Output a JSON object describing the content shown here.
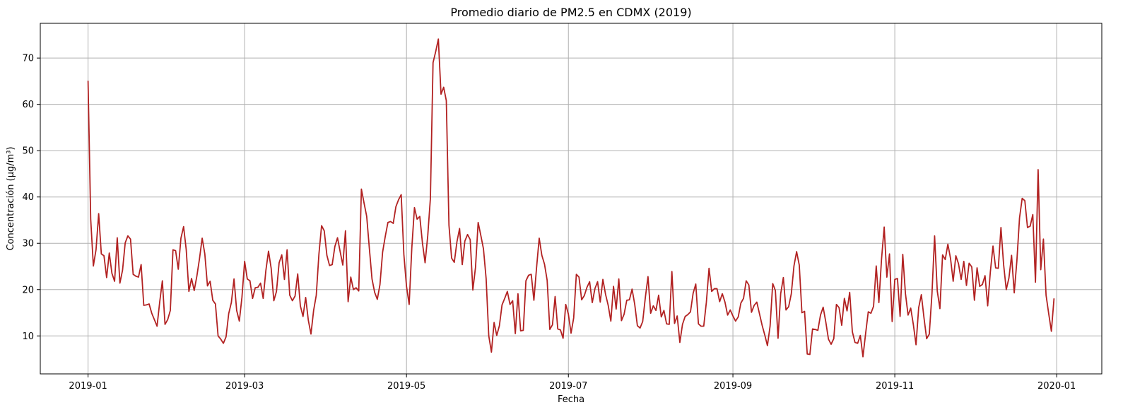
{
  "chart_data": {
    "type": "line",
    "title": "Promedio diario de PM2.5 en CDMX (2019)",
    "xlabel": "Fecha",
    "ylabel": "Concentración (µg/m³)",
    "xlim": [
      "2018-12-14",
      "2020-01-18"
    ],
    "ylim": [
      1.8,
      77.5
    ],
    "x_ticks": [
      "2019-01",
      "2019-03",
      "2019-05",
      "2019-07",
      "2019-09",
      "2019-11",
      "2020-01"
    ],
    "y_ticks": [
      10,
      20,
      30,
      40,
      50,
      60,
      70
    ],
    "grid": true,
    "legend": "none",
    "series": [
      {
        "color": "#b22222",
        "x_start": "2019-01-01",
        "x_step_days": 1,
        "values": [
          65.1,
          35.2,
          25.1,
          28.6,
          36.4,
          27.7,
          27.3,
          22.6,
          27.9,
          23.5,
          21.8,
          31.2,
          21.4,
          24.2,
          30.1,
          31.6,
          30.9,
          23.3,
          22.9,
          22.7,
          25.4,
          16.6,
          16.7,
          16.9,
          14.9,
          13.5,
          12.1,
          17.3,
          21.9,
          12.5,
          13.5,
          15.5,
          28.6,
          28.4,
          24.4,
          31.1,
          33.6,
          28.6,
          19.6,
          22.4,
          19.8,
          22.9,
          26.7,
          31.1,
          27.7,
          20.8,
          21.8,
          17.7,
          16.9,
          10.0,
          9.3,
          8.4,
          9.8,
          14.8,
          17.2,
          22.3,
          15.5,
          13.2,
          18.4,
          26.1,
          22.3,
          21.9,
          18.1,
          20.4,
          20.5,
          21.4,
          18.1,
          24.1,
          28.3,
          24.6,
          17.6,
          19.6,
          25.8,
          27.5,
          22.2,
          28.6,
          18.8,
          17.6,
          18.6,
          23.4,
          16.5,
          14.2,
          18.3,
          13.4,
          10.4,
          15.5,
          18.8,
          27.7,
          33.8,
          32.7,
          27.4,
          25.2,
          25.4,
          29.3,
          31.2,
          28.2,
          25.3,
          32.7,
          17.4,
          22.7,
          20.0,
          20.4,
          19.7,
          41.7,
          38.7,
          35.8,
          28.9,
          22.3,
          19.4,
          17.9,
          21.1,
          28.1,
          31.5,
          34.5,
          34.7,
          34.3,
          37.9,
          39.4,
          40.5,
          27.6,
          20.7,
          16.8,
          29.0,
          37.7,
          35.2,
          35.8,
          30.1,
          25.8,
          31.6,
          39.7,
          69.0,
          71.4,
          74.1,
          62.2,
          63.7,
          60.8,
          33.9,
          26.8,
          25.9,
          30.3,
          33.2,
          25.4,
          30.5,
          31.9,
          30.8,
          19.9,
          24.8,
          34.5,
          31.7,
          28.8,
          22.4,
          10.0,
          6.5,
          12.9,
          10.1,
          12.2,
          16.7,
          18.1,
          19.6,
          16.8,
          17.6,
          10.5,
          19.1,
          11.1,
          11.2,
          21.9,
          23.1,
          23.3,
          17.7,
          24.7,
          31.1,
          27.4,
          25.5,
          22.0,
          11.4,
          12.4,
          18.5,
          11.5,
          11.3,
          9.5,
          16.8,
          14.7,
          10.6,
          13.9,
          23.3,
          22.7,
          17.8,
          18.7,
          20.5,
          21.7,
          17.2,
          20.2,
          21.7,
          17.3,
          22.2,
          19.0,
          16.6,
          13.2,
          20.7,
          15.8,
          22.3,
          13.3,
          14.7,
          17.7,
          17.8,
          20.1,
          16.8,
          12.2,
          11.7,
          13.1,
          18.3,
          22.8,
          14.9,
          16.5,
          15.5,
          18.8,
          14.1,
          15.5,
          12.6,
          12.5,
          23.9,
          12.7,
          14.3,
          8.6,
          12.5,
          14.2,
          14.6,
          15.2,
          19.2,
          21.2,
          12.6,
          12.1,
          12.1,
          17.3,
          24.6,
          19.6,
          20.2,
          20.2,
          17.4,
          19.1,
          17.3,
          14.5,
          15.6,
          14.3,
          13.2,
          14.1,
          17.1,
          18.1,
          21.9,
          21.0,
          15.1,
          16.6,
          17.3,
          14.8,
          12.3,
          10.2,
          7.9,
          12.1,
          21.3,
          19.8,
          9.5,
          19.1,
          22.6,
          15.6,
          16.3,
          19.1,
          25.1,
          28.2,
          25.3,
          15.0,
          15.3,
          6.1,
          6.0,
          11.5,
          11.4,
          11.2,
          14.5,
          16.2,
          13.0,
          9.3,
          8.2,
          9.4,
          16.8,
          16.1,
          12.3,
          18.1,
          15.4,
          19.4,
          10.9,
          8.6,
          8.4,
          10.1,
          5.5,
          10.5,
          15.2,
          14.9,
          16.4,
          25.1,
          17.2,
          26.6,
          33.5,
          22.7,
          27.7,
          13.1,
          22.2,
          22.4,
          14.2,
          27.6,
          19.2,
          14.5,
          16.0,
          12.4,
          8.1,
          16.1,
          18.9,
          13.9,
          9.4,
          10.4,
          19.1,
          31.6,
          19.7,
          15.9,
          27.5,
          26.5,
          29.8,
          26.7,
          21.8,
          27.3,
          25.6,
          22.2,
          26.1,
          20.9,
          25.7,
          24.9,
          17.7,
          24.7,
          20.7,
          21.1,
          23.0,
          16.5,
          23.8,
          29.4,
          24.7,
          24.6,
          33.4,
          25.4,
          20.0,
          22.5,
          27.4,
          19.3,
          26.2,
          35.5,
          39.7,
          39.2,
          33.4,
          33.7,
          36.2,
          21.6,
          45.9,
          24.3,
          30.9,
          18.8,
          14.8,
          11.0,
          18.1
        ]
      }
    ]
  }
}
